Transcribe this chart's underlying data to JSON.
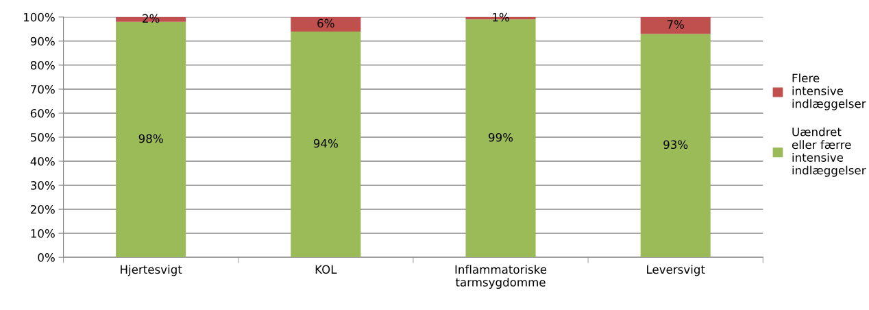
{
  "chart_data": {
    "type": "bar",
    "stacked": true,
    "categories": [
      "Hjertesvigt",
      "KOL",
      "Inflammatoriske\ntarmsygdomme",
      "Leversvigt"
    ],
    "series": [
      {
        "name": "Uændret\neller færre\nintensive\nindlæggelser",
        "color": "#9bbb59",
        "values": [
          98,
          94,
          99,
          93
        ],
        "value_labels": [
          "98%",
          "94%",
          "99%",
          "93%"
        ]
      },
      {
        "name": "Flere\nintensive\nindlæggelser",
        "color": "#c0504d",
        "values": [
          2,
          6,
          1,
          7
        ],
        "value_labels": [
          "2%",
          "6%",
          "1%",
          "7%"
        ]
      }
    ],
    "ylim": [
      0,
      100
    ],
    "yticks": [
      {
        "value": 0,
        "label": "0%"
      },
      {
        "value": 10,
        "label": "10%"
      },
      {
        "value": 20,
        "label": "20%"
      },
      {
        "value": 30,
        "label": "30%"
      },
      {
        "value": 40,
        "label": "40%"
      },
      {
        "value": 50,
        "label": "50%"
      },
      {
        "value": 60,
        "label": "60%"
      },
      {
        "value": 70,
        "label": "70%"
      },
      {
        "value": 80,
        "label": "80%"
      },
      {
        "value": 90,
        "label": "90%"
      },
      {
        "value": 100,
        "label": "100%"
      }
    ],
    "grid": "y",
    "legend": "right"
  }
}
